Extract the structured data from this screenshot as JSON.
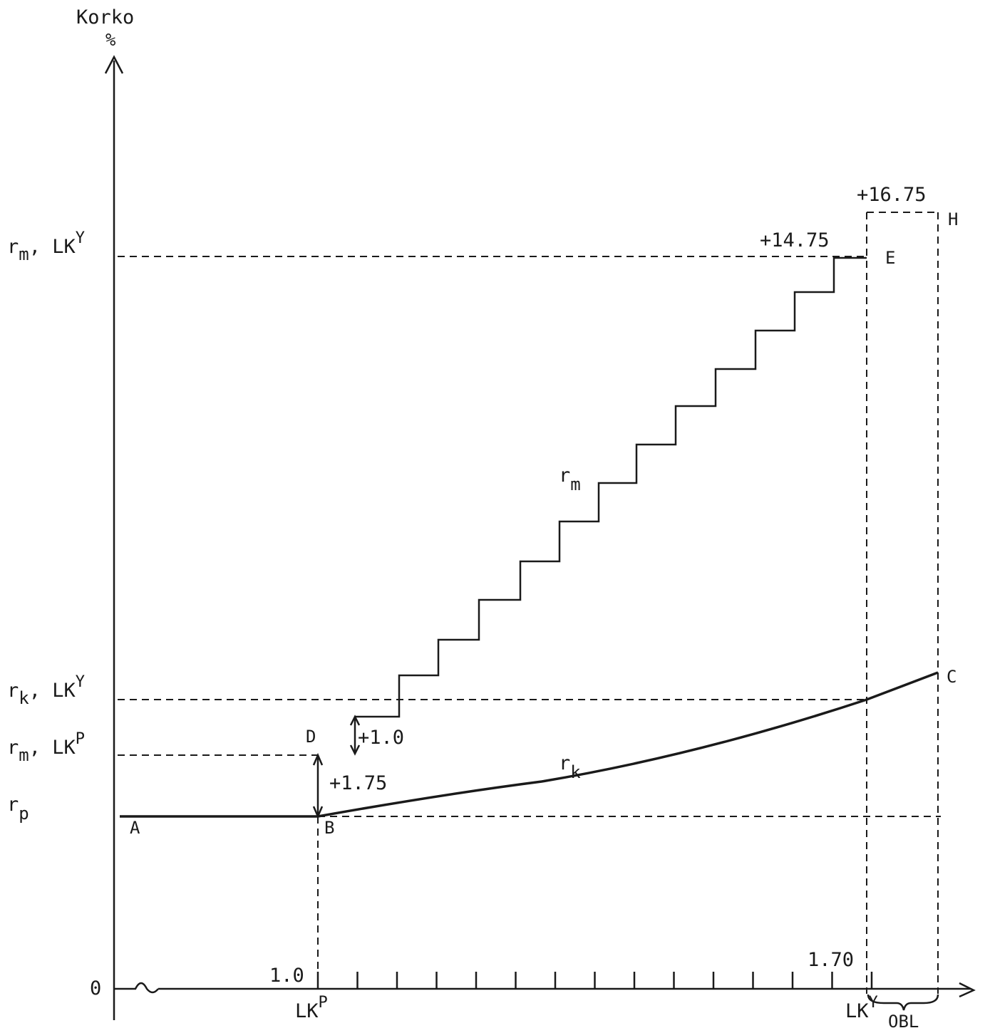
{
  "axes": {
    "y_label_line1": "Korko",
    "y_label_line2": "%",
    "zero": "0"
  },
  "y_labels": {
    "rm_lky": {
      "base": "r",
      "sub": "m",
      "mid": ", LK",
      "sup": "Y"
    },
    "rk_lky": {
      "base": "r",
      "sub": "k",
      "mid": ", LK",
      "sup": "Y"
    },
    "rm_lkp": {
      "base": "r",
      "sub": "m",
      "mid": ", LK",
      "sup": "P"
    },
    "rp": {
      "base": "r",
      "sub": "p"
    }
  },
  "x_labels": {
    "lkp": {
      "base": "LK",
      "sup": "P"
    },
    "lky": {
      "base": "LK",
      "sup": "Y"
    },
    "obl": "OBL",
    "val_1_0": "1.0",
    "val_1_70": "1.70"
  },
  "points": {
    "A": "A",
    "B": "B",
    "C": "C",
    "D": "D",
    "E": "E",
    "H": "H"
  },
  "annotations": {
    "plus_1_75": "+1.75",
    "plus_1_0": "+1.0",
    "plus_14_75": "+14.75",
    "plus_16_75": "+16.75"
  },
  "curve_labels": {
    "rm": {
      "base": "r",
      "sub": "m"
    },
    "rk": {
      "base": "r",
      "sub": "k"
    }
  }
}
